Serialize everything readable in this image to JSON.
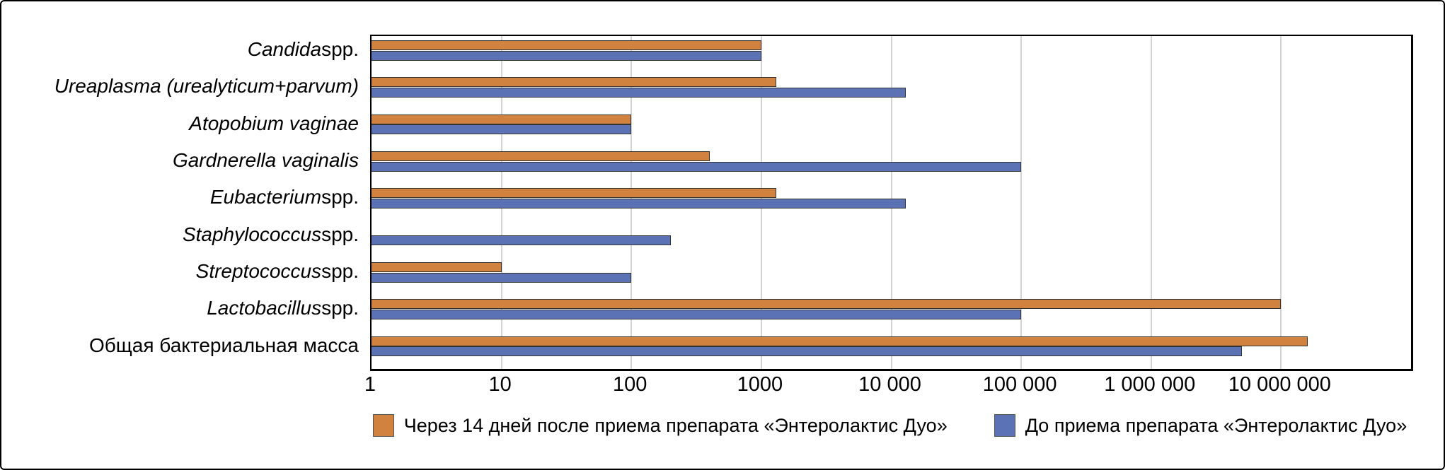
{
  "chart_data": {
    "type": "bar",
    "orientation": "horizontal",
    "title": "",
    "x_axis": {
      "scale": "log10",
      "min": 1,
      "max": 100000000,
      "tick_labels": [
        "1",
        "10",
        "100",
        "1000",
        "10 000",
        "100 000",
        "1 000 000",
        "10 000 000"
      ],
      "grid": true
    },
    "categories": [
      {
        "italic": "Candida",
        "regular": " spp."
      },
      {
        "italic": "Ureaplasma (urealyticum+parvum)",
        "regular": ""
      },
      {
        "italic": "Atopobium vaginae",
        "regular": ""
      },
      {
        "italic": "Gardnerella vaginalis",
        "regular": ""
      },
      {
        "italic": "Eubacterium",
        "regular": " spp."
      },
      {
        "italic": "Staphylococcus",
        "regular": " spp."
      },
      {
        "italic": "Streptococcus",
        "regular": " spp."
      },
      {
        "italic": "Lactobacillus",
        "regular": " spp."
      },
      {
        "italic": "",
        "regular": "Общая бактериальная масса"
      }
    ],
    "series": [
      {
        "name": "Через 14 дней после приема препарата «Энтеролактис Дуо»",
        "color": "#D0823E",
        "values": [
          1000,
          1300,
          100,
          400,
          1300,
          null,
          10,
          10000000,
          16000000
        ]
      },
      {
        "name": "До приема препарата «Энтеролактис Дуо»",
        "color": "#5B73B4",
        "values": [
          1000,
          13000,
          100,
          100000,
          13000,
          200,
          100,
          100000,
          5000000
        ]
      }
    ],
    "legend_position": "bottom-center",
    "colors": {
      "gridline": "#D3D3D3",
      "plot_border": "#000000",
      "bar_outline": "#333333"
    }
  }
}
